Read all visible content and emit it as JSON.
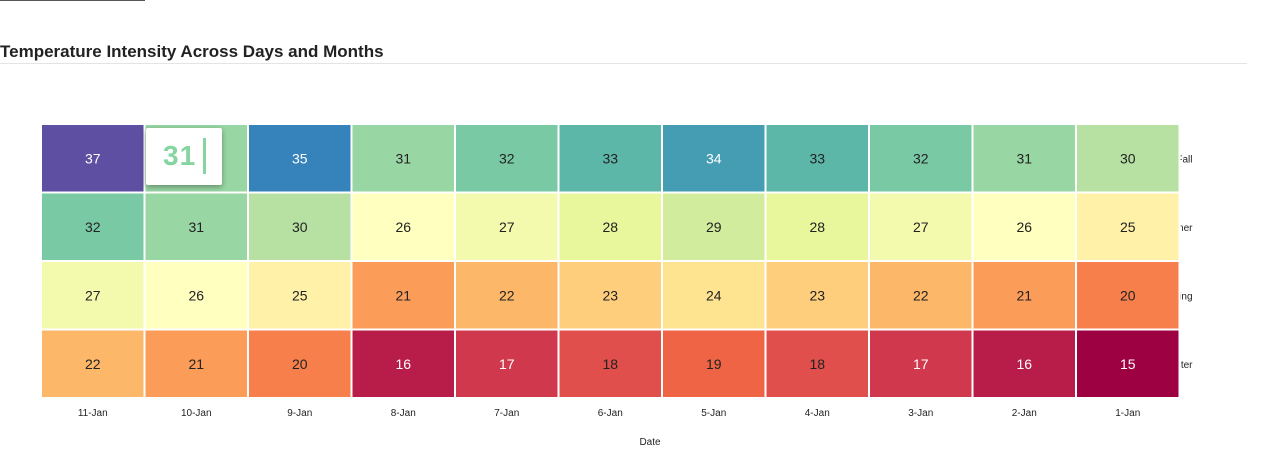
{
  "chart_data": {
    "type": "heatmap",
    "title": "Temperature Intensity Across Days and Months",
    "xlabel": "Date",
    "x": [
      "11-Jan",
      "10-Jan",
      "9-Jan",
      "8-Jan",
      "7-Jan",
      "6-Jan",
      "5-Jan",
      "4-Jan",
      "3-Jan",
      "2-Jan",
      "1-Jan"
    ],
    "rows": [
      {
        "label": "Fall",
        "values": [
          37,
          31,
          35,
          31,
          32,
          33,
          34,
          33,
          32,
          31,
          30
        ]
      },
      {
        "label": "Summer",
        "values": [
          32,
          31,
          30,
          26,
          27,
          28,
          29,
          28,
          27,
          26,
          25
        ]
      },
      {
        "label": "Spring",
        "values": [
          27,
          26,
          25,
          21,
          22,
          23,
          24,
          23,
          22,
          21,
          20
        ]
      },
      {
        "label": "Winter",
        "values": [
          22,
          21,
          20,
          16,
          17,
          18,
          19,
          18,
          17,
          16,
          15
        ]
      }
    ],
    "color_scale": "Spectral",
    "color_range": [
      15,
      37
    ],
    "grid": false,
    "tooltip": {
      "value": "31"
    }
  }
}
